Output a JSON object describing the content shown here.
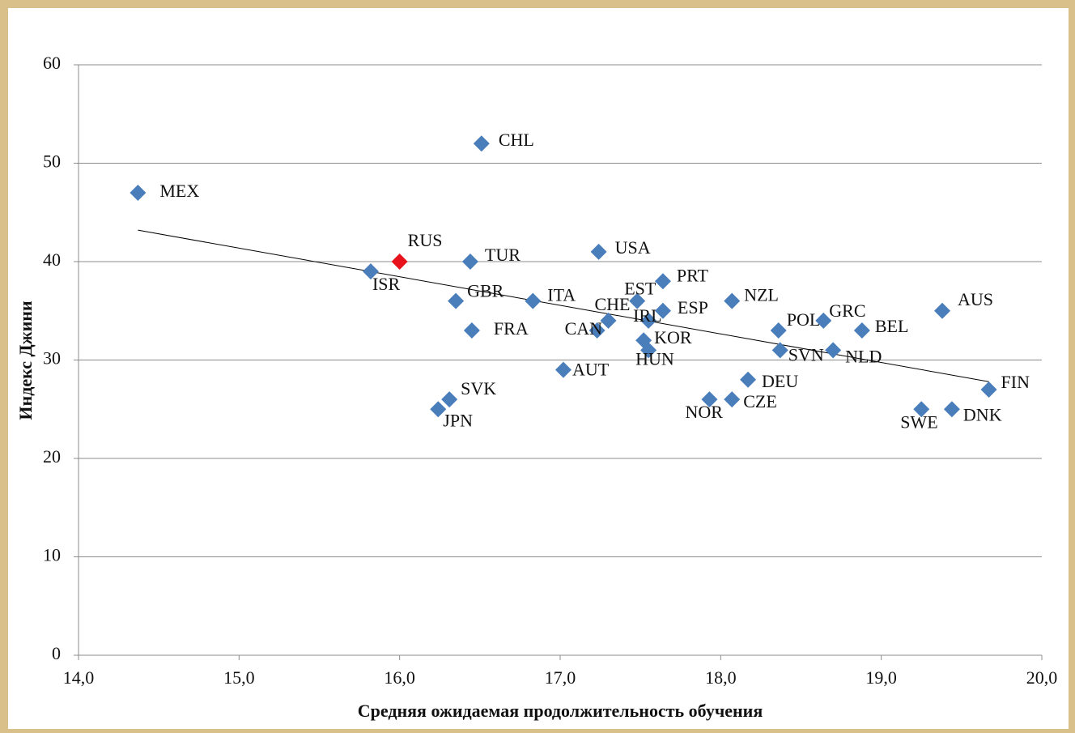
{
  "chart_data": {
    "type": "scatter",
    "x_label": "Средняя ожидаемая продолжительность обучения",
    "y_label": "Индекс Джини",
    "labels": [
      "MEX",
      "CHL",
      "RUS",
      "ISR",
      "TUR",
      "USA",
      "GBR",
      "ITA",
      "FRA",
      "EST",
      "PRT",
      "CHE",
      "CAN",
      "IRL",
      "ESP",
      "KOR",
      "HUN",
      "NZL",
      "POL",
      "GRC",
      "SVN",
      "NLD",
      "BEL",
      "AUS",
      "DEU",
      "NOR",
      "CZE",
      "AUT",
      "SVK",
      "JPN",
      "SWE",
      "DNK",
      "FIN"
    ],
    "x": [
      14.37,
      16.51,
      16.0,
      15.82,
      16.44,
      17.24,
      16.35,
      16.83,
      16.45,
      17.48,
      17.64,
      17.3,
      17.23,
      17.55,
      17.64,
      17.52,
      17.55,
      18.07,
      18.36,
      18.64,
      18.37,
      18.7,
      18.88,
      19.38,
      18.17,
      17.93,
      18.07,
      17.02,
      16.31,
      16.24,
      19.25,
      19.44,
      19.67
    ],
    "y": [
      47,
      52,
      40,
      39,
      40,
      41,
      36,
      36,
      33,
      36,
      38,
      34,
      33,
      34,
      35,
      32,
      31,
      36,
      33,
      34,
      31,
      31,
      33,
      35,
      28,
      26,
      26,
      29,
      26,
      25,
      25,
      25,
      27
    ],
    "colors": [
      "#4a7ebb",
      "#4a7ebb",
      "#e8121c",
      "#4a7ebb",
      "#4a7ebb",
      "#4a7ebb",
      "#4a7ebb",
      "#4a7ebb",
      "#4a7ebb",
      "#4a7ebb",
      "#4a7ebb",
      "#4a7ebb",
      "#4a7ebb",
      "#4a7ebb",
      "#4a7ebb",
      "#4a7ebb",
      "#4a7ebb",
      "#4a7ebb",
      "#4a7ebb",
      "#4a7ebb",
      "#4a7ebb",
      "#4a7ebb",
      "#4a7ebb",
      "#4a7ebb",
      "#4a7ebb",
      "#4a7ebb",
      "#4a7ebb",
      "#4a7ebb",
      "#4a7ebb",
      "#4a7ebb",
      "#4a7ebb",
      "#4a7ebb",
      "#4a7ebb"
    ],
    "trendline": {
      "x": [
        14.37,
        19.67
      ],
      "y": [
        43.2,
        27.8
      ],
      "color": "#000000"
    },
    "xlim": [
      14,
      20
    ],
    "ylim": [
      0,
      60
    ],
    "xticks": [
      {
        "value": 14,
        "label": "14,0"
      },
      {
        "value": 15,
        "label": "15,0"
      },
      {
        "value": 16,
        "label": "16,0"
      },
      {
        "value": 17,
        "label": "17,0"
      },
      {
        "value": 18,
        "label": "18,0"
      },
      {
        "value": 19,
        "label": "19,0"
      },
      {
        "value": 20,
        "label": "20,0"
      }
    ],
    "yticks": [
      0,
      10,
      20,
      30,
      40,
      50,
      60
    ],
    "grid": true
  }
}
